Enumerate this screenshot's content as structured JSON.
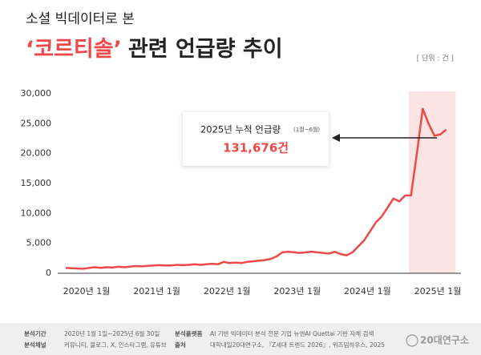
{
  "chart_data": {
    "type": "line",
    "subtitle": "소셜 빅데이터로 본",
    "title_highlight": "‘코르티솔’",
    "title": "관련 언급량 추이",
    "unit": "[ 단위 : 건 ]",
    "categories": [
      "2020년 1월",
      null,
      null,
      null,
      null,
      null,
      null,
      null,
      null,
      null,
      null,
      null,
      "2021년 1월",
      null,
      null,
      null,
      null,
      null,
      null,
      null,
      null,
      null,
      null,
      null,
      "2022년 1월",
      null,
      null,
      null,
      null,
      null,
      null,
      null,
      null,
      null,
      null,
      null,
      "2023년 1월",
      null,
      null,
      null,
      null,
      null,
      null,
      null,
      null,
      null,
      null,
      null,
      "2024년 1월",
      null,
      null,
      null,
      null,
      null,
      null,
      null,
      null,
      null,
      null,
      null,
      "2025년 1월",
      null,
      null,
      null,
      null,
      null
    ],
    "series": [
      {
        "name": "언급량",
        "color": "#ef4848",
        "values": [
          900,
          850,
          800,
          750,
          900,
          1000,
          900,
          1000,
          950,
          1100,
          1000,
          1100,
          1200,
          1150,
          1250,
          1300,
          1350,
          1300,
          1300,
          1400,
          1350,
          1400,
          1500,
          1400,
          1500,
          1600,
          1500,
          1900,
          1700,
          1800,
          1700,
          1900,
          2000,
          2100,
          2200,
          2400,
          2800,
          3500,
          3600,
          3500,
          3400,
          3500,
          3600,
          3500,
          3400,
          3300,
          3600,
          3200,
          3000,
          3500,
          4500,
          5500,
          7000,
          8500,
          9500,
          11000,
          12500,
          12000,
          13000,
          13000,
          20000,
          27500,
          25000,
          23000,
          23200,
          24000
        ]
      }
    ],
    "ylim": [
      0,
      30000
    ],
    "yticks": [
      0,
      {
        "value": 5000,
        "label": "5,000"
      },
      {
        "value": 10000,
        "label": "10,000"
      },
      {
        "value": 15000,
        "label": "15,000"
      },
      {
        "value": 20000,
        "label": "20,000"
      },
      {
        "value": 25000,
        "label": "25,000"
      },
      {
        "value": 30000,
        "label": "30,000"
      }
    ],
    "grid": false,
    "annotation": {
      "label": "2025년 누적 언급량",
      "note": "(1월~6월)",
      "value": 131676,
      "value_label": "131,676건"
    },
    "footer": [
      [
        "분석기간",
        "2020년 1월 1일~2025년 6월 30일",
        "분석플랫폼",
        "AI 기반 빅데이터 분석 전문 기업 뉴엔AI Quettai 기반 자체 검색"
      ],
      [
        "분석채널",
        "커뮤니티, 블로그, X, 인스타그램, 유튜브",
        "출처",
        "대학내일20대연구소, 『Z세대 트렌드 2026』, 위즈덤하우스, 2025"
      ]
    ],
    "logo": "20대연구소"
  }
}
